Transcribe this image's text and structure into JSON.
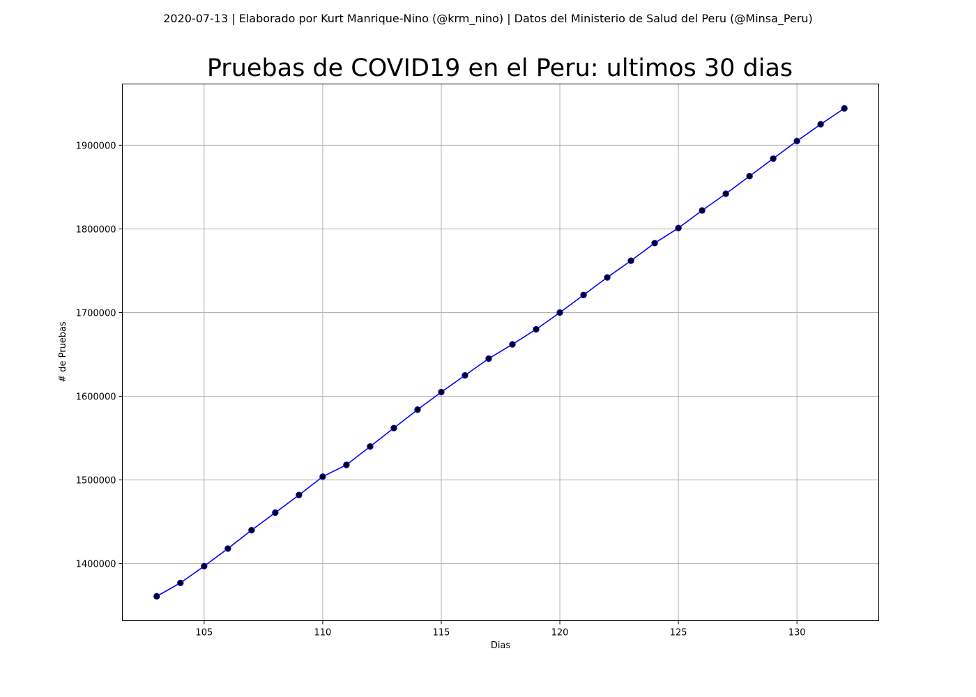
{
  "header": {
    "subtitle": "2020-07-13 | Elaborado por Kurt Manrique-Nino (@krm_nino) | Datos del Ministerio de Salud del Peru (@Minsa_Peru)"
  },
  "chart_data": {
    "type": "line",
    "title": "Pruebas de COVID19 en el Peru: ultimos 30 dias",
    "xlabel": "Dias",
    "ylabel": "# de Pruebas",
    "x": [
      103,
      104,
      105,
      106,
      107,
      108,
      109,
      110,
      111,
      112,
      113,
      114,
      115,
      116,
      117,
      118,
      119,
      120,
      121,
      122,
      123,
      124,
      125,
      126,
      127,
      128,
      129,
      130,
      131,
      132
    ],
    "series": [
      {
        "values": [
          1361000,
          1377000,
          1397000,
          1418000,
          1440000,
          1461000,
          1482000,
          1504000,
          1518000,
          1540000,
          1562000,
          1584000,
          1605000,
          1625000,
          1645000,
          1662000,
          1680000,
          1700000,
          1721000,
          1742000,
          1762000,
          1783000,
          1801000,
          1822000,
          1842000,
          1863000,
          1884000,
          1905000,
          1925000,
          1944000
        ],
        "line_color": "#0000ff",
        "marker_color": "#000000"
      }
    ],
    "xlim": [
      101.55,
      133.45
    ],
    "ylim": [
      1331850,
      1973150
    ],
    "xticks": [
      105,
      110,
      115,
      120,
      125,
      130
    ],
    "yticks": [
      1400000,
      1500000,
      1600000,
      1700000,
      1800000,
      1900000
    ],
    "grid": true
  }
}
